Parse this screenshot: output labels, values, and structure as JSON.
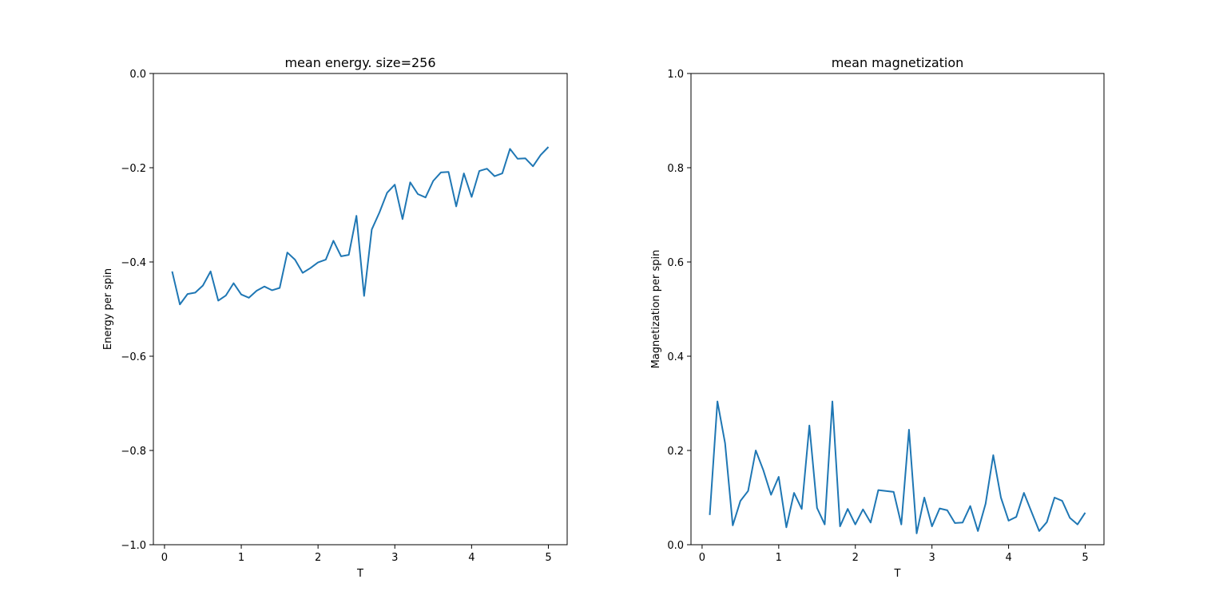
{
  "chart_data": [
    {
      "type": "line",
      "title": "mean energy. size=256",
      "xlabel": "T",
      "ylabel": "Energy per spin",
      "xlim": [
        -0.145,
        5.245
      ],
      "ylim": [
        -1.0,
        0.0
      ],
      "xticks": [
        0,
        1,
        2,
        3,
        4,
        5
      ],
      "xtick_labels": [
        "0",
        "1",
        "2",
        "3",
        "4",
        "5"
      ],
      "yticks": [
        -1.0,
        -0.8,
        -0.6,
        -0.4,
        -0.2,
        0.0
      ],
      "ytick_labels": [
        "−1.0",
        "−0.8",
        "−0.6",
        "−0.4",
        "−0.2",
        "0.0"
      ],
      "grid": false,
      "color": "#1f77b4",
      "x": [
        0.1,
        0.2,
        0.3,
        0.4,
        0.5,
        0.6,
        0.7,
        0.8,
        0.9,
        1.0,
        1.1,
        1.2,
        1.3,
        1.4,
        1.5,
        1.6,
        1.7,
        1.8,
        1.9,
        2.0,
        2.1,
        2.2,
        2.3,
        2.4,
        2.5,
        2.6,
        2.7,
        2.8,
        2.9,
        3.0,
        3.1,
        3.2,
        3.3,
        3.4,
        3.5,
        3.6,
        3.7,
        3.8,
        3.9,
        4.0,
        4.1,
        4.2,
        4.3,
        4.4,
        4.5,
        4.6,
        4.7,
        4.8,
        4.9,
        5.0
      ],
      "y": [
        -0.42,
        -0.49,
        -0.468,
        -0.465,
        -0.45,
        -0.42,
        -0.482,
        -0.471,
        -0.445,
        -0.469,
        -0.476,
        -0.461,
        -0.452,
        -0.46,
        -0.455,
        -0.38,
        -0.395,
        -0.423,
        -0.413,
        -0.401,
        -0.395,
        -0.355,
        -0.388,
        -0.385,
        -0.302,
        -0.472,
        -0.331,
        -0.295,
        -0.253,
        -0.236,
        -0.309,
        -0.231,
        -0.256,
        -0.263,
        -0.228,
        -0.21,
        -0.209,
        -0.282,
        -0.212,
        -0.262,
        -0.207,
        -0.202,
        -0.218,
        -0.212,
        -0.16,
        -0.181,
        -0.18,
        -0.197,
        -0.173,
        -0.156
      ]
    },
    {
      "type": "line",
      "title": "mean magnetization",
      "xlabel": "T",
      "ylabel": "Magnetization per spin",
      "xlim": [
        -0.145,
        5.245
      ],
      "ylim": [
        0.0,
        1.0
      ],
      "xticks": [
        0,
        1,
        2,
        3,
        4,
        5
      ],
      "xtick_labels": [
        "0",
        "1",
        "2",
        "3",
        "4",
        "5"
      ],
      "yticks": [
        0.0,
        0.2,
        0.4,
        0.6,
        0.8,
        1.0
      ],
      "ytick_labels": [
        "0.0",
        "0.2",
        "0.4",
        "0.6",
        "0.8",
        "1.0"
      ],
      "grid": false,
      "color": "#1f77b4",
      "x": [
        0.1,
        0.2,
        0.3,
        0.4,
        0.5,
        0.6,
        0.7,
        0.8,
        0.9,
        1.0,
        1.1,
        1.2,
        1.3,
        1.4,
        1.5,
        1.6,
        1.7,
        1.8,
        1.9,
        2.0,
        2.1,
        2.2,
        2.3,
        2.4,
        2.5,
        2.6,
        2.7,
        2.8,
        2.9,
        3.0,
        3.1,
        3.2,
        3.3,
        3.4,
        3.5,
        3.6,
        3.7,
        3.8,
        3.9,
        4.0,
        4.1,
        4.2,
        4.3,
        4.4,
        4.5,
        4.6,
        4.7,
        4.8,
        4.9,
        5.0
      ],
      "y": [
        0.063,
        0.304,
        0.215,
        0.041,
        0.093,
        0.114,
        0.2,
        0.158,
        0.106,
        0.144,
        0.037,
        0.11,
        0.076,
        0.253,
        0.078,
        0.043,
        0.304,
        0.039,
        0.076,
        0.043,
        0.075,
        0.047,
        0.116,
        0.114,
        0.112,
        0.043,
        0.244,
        0.024,
        0.1,
        0.039,
        0.077,
        0.073,
        0.046,
        0.047,
        0.082,
        0.029,
        0.087,
        0.19,
        0.1,
        0.051,
        0.059,
        0.11,
        0.069,
        0.029,
        0.048,
        0.1,
        0.093,
        0.057,
        0.043,
        0.068
      ]
    }
  ]
}
